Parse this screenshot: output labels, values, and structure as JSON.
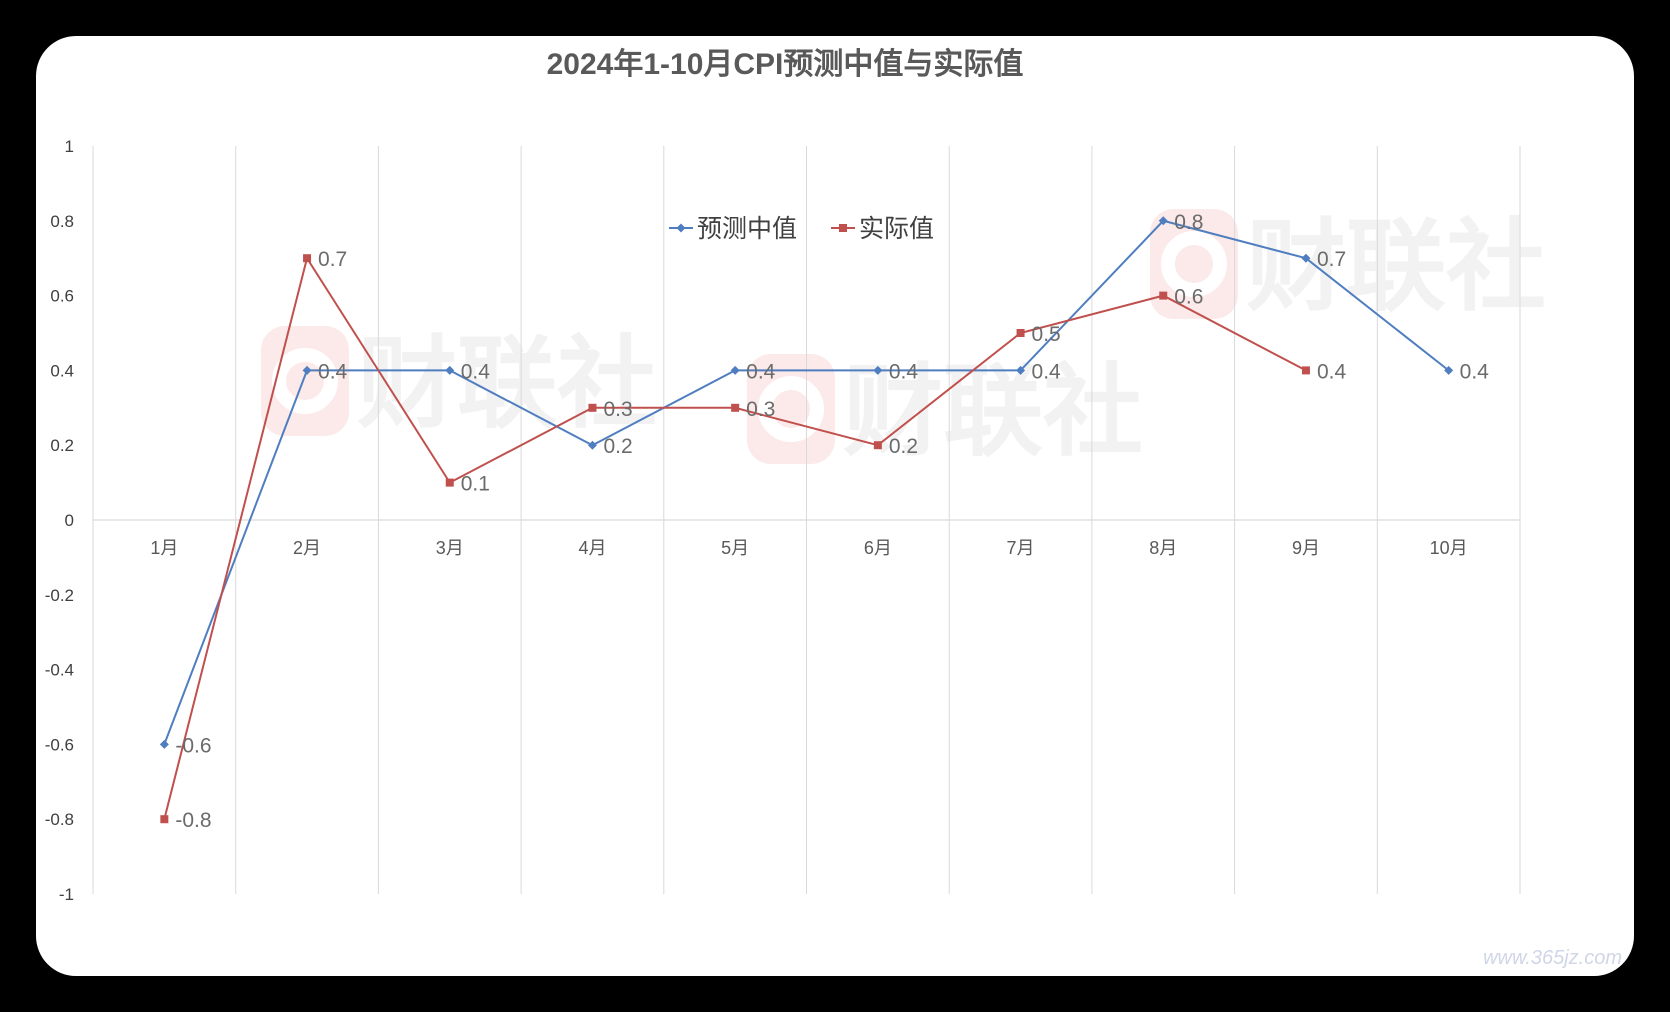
{
  "watermark": {
    "text": "财联社",
    "site": "www.365jz.com"
  },
  "colors": {
    "forecast": "#4F7EC0",
    "actual": "#C0504D",
    "grid": "#D9D9D9",
    "watermark_logo": "#FCE9E9"
  },
  "chart_data": {
    "type": "line",
    "title": "2024年1-10月CPI预测中值与实际值",
    "categories": [
      "1月",
      "2月",
      "3月",
      "4月",
      "5月",
      "6月",
      "7月",
      "8月",
      "9月",
      "10月"
    ],
    "ylim": [
      -1,
      1
    ],
    "yticks": [
      1,
      0.8,
      0.6,
      0.4,
      0.2,
      0,
      -0.2,
      -0.4,
      -0.6,
      -0.8,
      -1
    ],
    "ytick_labels": [
      "1",
      "0.8",
      "0.6",
      "0.4",
      "0.2",
      "0",
      "-0.2",
      "-0.4",
      "-0.6",
      "-0.8",
      "-1"
    ],
    "grid": true,
    "legend_position": "top-center",
    "series": [
      {
        "name": "预测中值",
        "marker": "diamond",
        "values": [
          -0.6,
          0.4,
          0.4,
          0.2,
          0.4,
          0.4,
          0.4,
          0.8,
          0.7,
          0.4
        ],
        "labels": [
          "-0.6",
          "0.4",
          "0.4",
          "0.2",
          "0.4",
          "0.4",
          "0.4",
          "0.8",
          "0.7",
          "0.4"
        ]
      },
      {
        "name": "实际值",
        "marker": "square",
        "values": [
          -0.8,
          0.7,
          0.1,
          0.3,
          0.3,
          0.2,
          0.5,
          0.6,
          0.4,
          null
        ],
        "labels": [
          "-0.8",
          "0.7",
          "0.1",
          "0.3",
          "0.3",
          "0.2",
          "0.5",
          "0.6",
          "0.4",
          null
        ]
      }
    ]
  }
}
